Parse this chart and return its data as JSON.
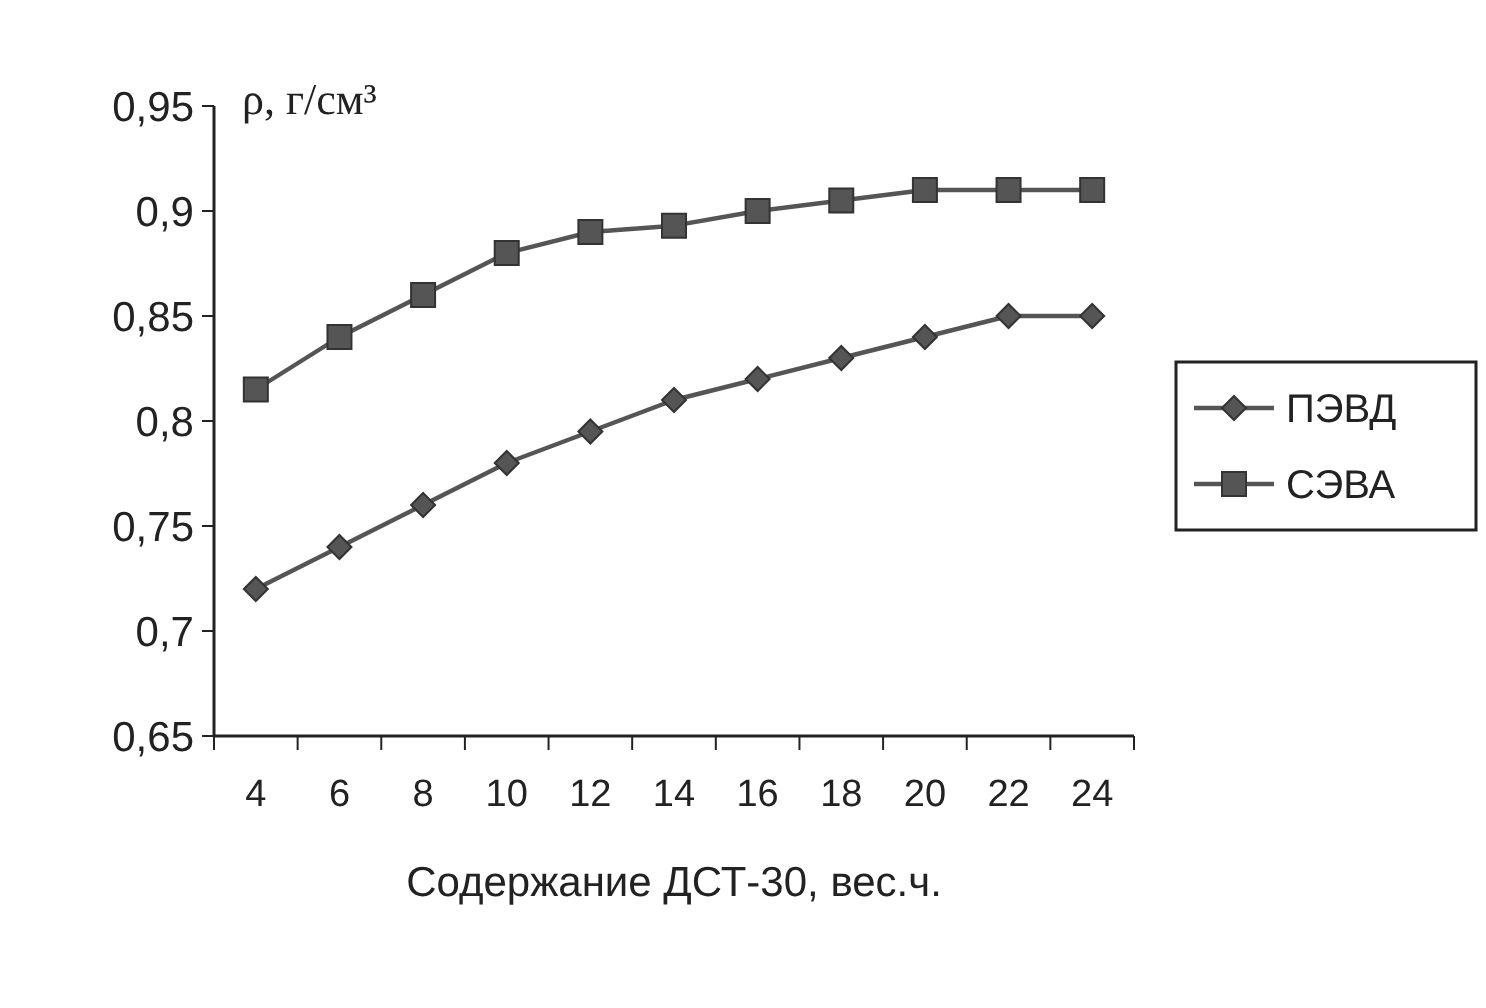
{
  "chart_data": {
    "type": "line",
    "xlabel": "Содержание ДСТ-30, вес.ч.",
    "ylabel": "ρ, г/см³",
    "categories": [
      "4",
      "6",
      "8",
      "10",
      "12",
      "14",
      "16",
      "18",
      "20",
      "22",
      "24"
    ],
    "series": [
      {
        "name": "ПЭВД",
        "color": "#555555",
        "marker": "diamond",
        "values": [
          0.72,
          0.74,
          0.76,
          0.78,
          0.795,
          0.81,
          0.82,
          0.83,
          0.84,
          0.85,
          0.85
        ]
      },
      {
        "name": "СЭВА",
        "color": "#555555",
        "marker": "square",
        "values": [
          0.815,
          0.84,
          0.86,
          0.88,
          0.89,
          0.893,
          0.9,
          0.905,
          0.91,
          0.91,
          0.91
        ]
      }
    ],
    "ylim": [
      0.65,
      0.95
    ],
    "yticks": [
      {
        "value": 0.65,
        "label": "0,65"
      },
      {
        "value": 0.7,
        "label": "0,7"
      },
      {
        "value": 0.75,
        "label": "0,75"
      },
      {
        "value": 0.8,
        "label": "0,8"
      },
      {
        "value": 0.85,
        "label": "0,85"
      },
      {
        "value": 0.9,
        "label": "0,9"
      },
      {
        "value": 0.95,
        "label": "0,95"
      }
    ],
    "grid": false,
    "legend": "right",
    "line_style": "solid"
  }
}
